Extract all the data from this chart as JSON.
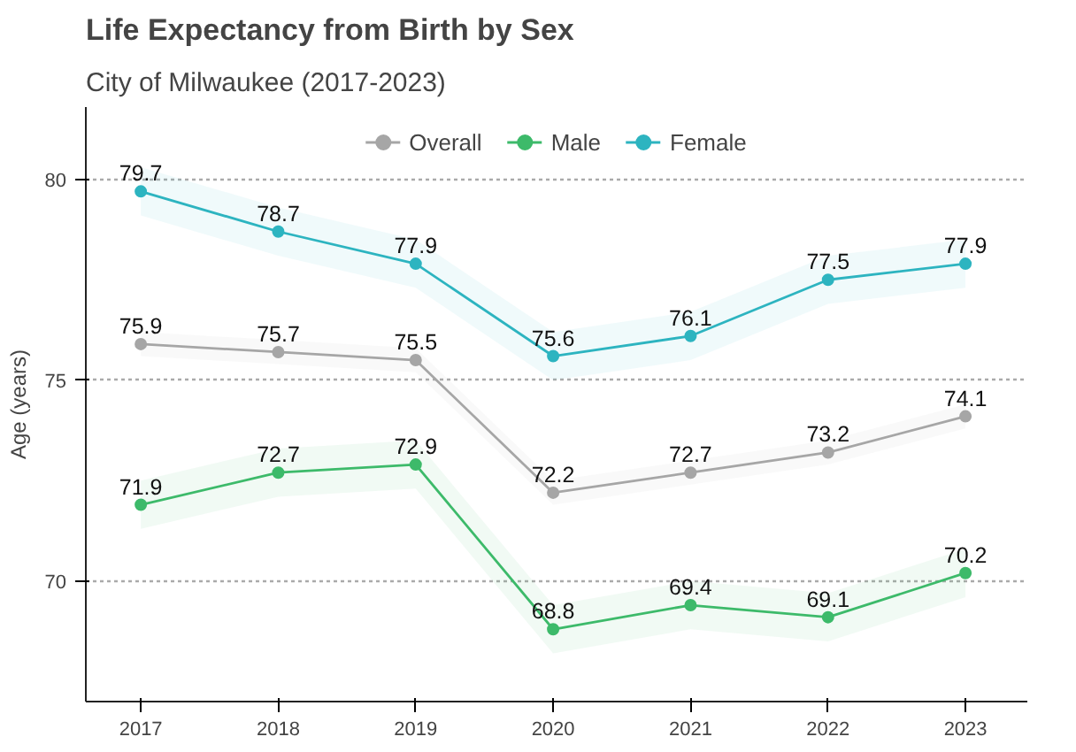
{
  "chart_data": {
    "type": "line",
    "title": "Life Expectancy from Birth by Sex",
    "subtitle": "City of Milwaukee (2017-2023)",
    "ylabel": "Age (years)",
    "x": [
      2017,
      2018,
      2019,
      2020,
      2021,
      2022,
      2023
    ],
    "xlim": [
      2016.6,
      2023.45
    ],
    "xticks": [
      2017,
      2018,
      2019,
      2020,
      2021,
      2022,
      2023
    ],
    "ylim": [
      67,
      81.8
    ],
    "yticks": [
      70,
      75,
      80
    ],
    "series": [
      {
        "name": "Overall",
        "color": "#a6a6a6",
        "values": [
          75.9,
          75.7,
          75.5,
          72.2,
          72.7,
          73.2,
          74.1
        ],
        "lower": [
          75.6,
          75.4,
          75.2,
          71.9,
          72.4,
          72.9,
          73.8
        ],
        "upper": [
          76.2,
          76.0,
          75.8,
          72.5,
          73.0,
          73.5,
          74.4
        ]
      },
      {
        "name": "Male",
        "color": "#3dba6a",
        "values": [
          71.9,
          72.7,
          72.9,
          68.8,
          69.4,
          69.1,
          70.2
        ],
        "lower": [
          71.3,
          72.1,
          72.3,
          68.2,
          68.8,
          68.5,
          69.6
        ],
        "upper": [
          72.5,
          73.3,
          73.5,
          69.4,
          70.0,
          69.7,
          70.8
        ]
      },
      {
        "name": "Female",
        "color": "#2db4c0",
        "values": [
          79.7,
          78.7,
          77.9,
          75.6,
          76.1,
          77.5,
          77.9
        ],
        "lower": [
          79.1,
          78.1,
          77.3,
          75.0,
          75.5,
          76.9,
          77.3
        ],
        "upper": [
          80.3,
          79.3,
          78.5,
          76.2,
          76.7,
          78.1,
          78.5
        ]
      }
    ],
    "data_labels": true,
    "grid": "y",
    "legend": "top",
    "marker": "circle",
    "line_style": "solid"
  }
}
